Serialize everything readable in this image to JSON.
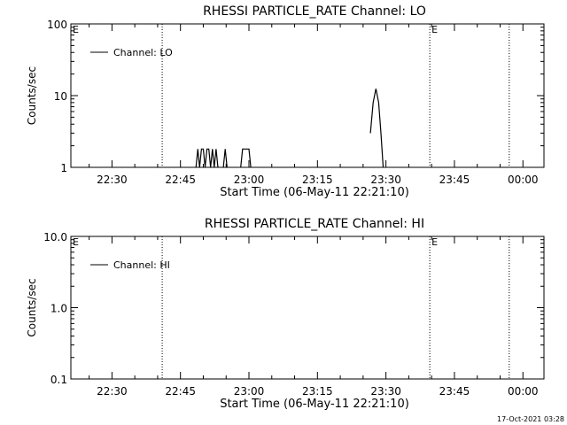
{
  "footer": {
    "timestamp": "17-Oct-2021 03:28"
  },
  "chart_data": [
    {
      "type": "line",
      "title": "RHESSI PARTICLE_RATE Channel: LO",
      "xlabel": "Start Time (06-May-11 22:21:10)",
      "ylabel": "Counts/sec",
      "yscale": "log",
      "ylim": [
        1,
        100
      ],
      "yticks": [
        1,
        10,
        100
      ],
      "ytick_labels": [
        "1",
        "10",
        "100"
      ],
      "xlim": [
        "22:21",
        "00:08"
      ],
      "xticks": [
        "22:30",
        "22:45",
        "23:00",
        "23:15",
        "23:30",
        "23:45",
        "00:00"
      ],
      "xtick_minutes": [
        9,
        24,
        39,
        54,
        69,
        84,
        99
      ],
      "legend": {
        "position": "top-left",
        "label": "Channel: LO"
      },
      "event_lines": [
        {
          "t_min": 20,
          "label": ""
        },
        {
          "t_min": 96,
          "label": ""
        },
        {
          "t_min": 78.6,
          "label": "E"
        },
        {
          "t_min": 0,
          "label": "E"
        }
      ],
      "series": [
        {
          "name": "Channel: LO",
          "points": [
            [
              27.4,
              1
            ],
            [
              27.8,
              1.8
            ],
            [
              28.2,
              1
            ],
            [
              28.6,
              1.8
            ],
            [
              29.0,
              1.8
            ],
            [
              29.4,
              1
            ],
            [
              29.8,
              1.8
            ],
            [
              30.2,
              1.8
            ],
            [
              30.6,
              1
            ],
            [
              31.0,
              1.8
            ],
            [
              31.4,
              1
            ],
            [
              31.8,
              1.8
            ],
            [
              32.2,
              1
            ]
          ]
        },
        {
          "name": "Channel: LO",
          "points": [
            [
              33.4,
              1
            ],
            [
              33.8,
              1.8
            ],
            [
              34.2,
              1
            ]
          ]
        },
        {
          "name": "Channel: LO",
          "points": [
            [
              37.2,
              1
            ],
            [
              37.6,
              1.8
            ],
            [
              39.0,
              1.8
            ],
            [
              39.4,
              1
            ]
          ]
        },
        {
          "name": "Channel: LO",
          "points": [
            [
              65.6,
              3
            ],
            [
              66.2,
              8
            ],
            [
              66.8,
              12.5
            ],
            [
              67.4,
              8
            ],
            [
              67.9,
              3
            ],
            [
              68.4,
              1
            ]
          ]
        }
      ]
    },
    {
      "type": "line",
      "title": "RHESSI PARTICLE_RATE Channel: HI",
      "xlabel": "Start Time (06-May-11 22:21:10)",
      "ylabel": "Counts/sec",
      "yscale": "log",
      "ylim": [
        0.1,
        10
      ],
      "yticks": [
        0.1,
        1,
        10
      ],
      "ytick_labels": [
        "0.1",
        "1.0",
        "10.0"
      ],
      "xlim": [
        "22:21",
        "00:08"
      ],
      "xticks": [
        "22:30",
        "22:45",
        "23:00",
        "23:15",
        "23:30",
        "23:45",
        "00:00"
      ],
      "xtick_minutes": [
        9,
        24,
        39,
        54,
        69,
        84,
        99
      ],
      "legend": {
        "position": "top-left",
        "label": "Channel: HI"
      },
      "event_lines": [
        {
          "t_min": 20,
          "label": ""
        },
        {
          "t_min": 96,
          "label": ""
        },
        {
          "t_min": 78.6,
          "label": "E"
        },
        {
          "t_min": 0,
          "label": "E"
        }
      ],
      "series": [
        {
          "name": "Channel: HI",
          "points": []
        }
      ]
    }
  ]
}
